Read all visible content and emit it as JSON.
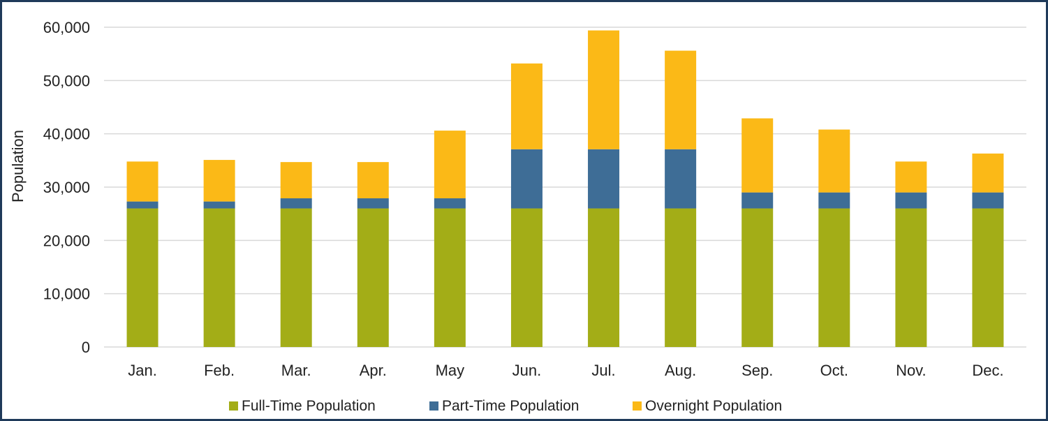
{
  "chart_data": {
    "type": "bar",
    "stacked": true,
    "title": "",
    "xlabel": "",
    "ylabel": "Population",
    "ylim": [
      0,
      60000
    ],
    "yticks": [
      0,
      10000,
      20000,
      30000,
      40000,
      50000,
      60000
    ],
    "ytick_labels": [
      "0",
      "10,000",
      "20,000",
      "30,000",
      "40,000",
      "50,000",
      "60,000"
    ],
    "grid": true,
    "legend_position": "bottom",
    "categories": [
      "Jan.",
      "Feb.",
      "Mar.",
      "Apr.",
      "May",
      "Jun.",
      "Jul.",
      "Aug.",
      "Sep.",
      "Oct.",
      "Nov.",
      "Dec."
    ],
    "series": [
      {
        "name": "Full-Time Population",
        "color": "#a3ad17",
        "values": [
          26000,
          26000,
          26000,
          26000,
          26000,
          26000,
          26000,
          26000,
          26000,
          26000,
          26000,
          26000
        ]
      },
      {
        "name": "Part-Time Population",
        "color": "#3e6d96",
        "values": [
          1300,
          1300,
          1900,
          1900,
          1900,
          11100,
          11100,
          11100,
          3000,
          3000,
          3000,
          3000
        ]
      },
      {
        "name": "Overnight Population",
        "color": "#fbb917",
        "values": [
          7500,
          7800,
          6800,
          6800,
          12700,
          16100,
          22300,
          18500,
          13900,
          11800,
          5800,
          7300
        ]
      }
    ]
  },
  "colors": {
    "frame": "#1f3a5a",
    "grid": "#d9d9d9"
  }
}
